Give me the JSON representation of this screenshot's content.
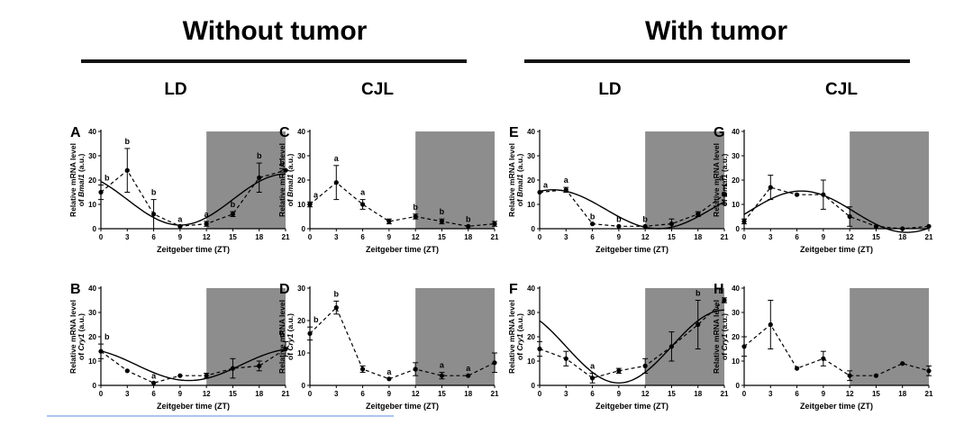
{
  "headers": {
    "left_group": "Without tumor",
    "right_group": "With tumor",
    "columns": [
      "LD",
      "CJL",
      "LD",
      "CJL"
    ]
  },
  "common_x_label": "Zeitgeber time (ZT)",
  "chart_data": [
    {
      "type": "line",
      "letter": "A",
      "gene": "Bmal1",
      "ylabel_line1": "Relative mRNA level",
      "ylabel_prefix": "of ",
      "ylabel_suffix": " (a.u.)",
      "x": [
        0,
        3,
        6,
        9,
        12,
        15,
        18,
        21
      ],
      "xlim": [
        0,
        21
      ],
      "ylim": [
        0,
        40
      ],
      "yticks": [
        0,
        10,
        20,
        30,
        40
      ],
      "dark_start": 12,
      "series": [
        {
          "values": [
            15,
            24,
            6,
            1,
            2,
            6,
            21,
            24
          ],
          "errors": [
            3,
            9,
            6,
            0,
            1,
            1,
            6,
            0
          ]
        }
      ],
      "labels": [
        "b",
        "b",
        "b",
        "a",
        "a",
        "b",
        "b",
        "b"
      ],
      "fit": {
        "mesor": 12,
        "amplitude": 10.5,
        "peak": 21
      }
    },
    {
      "type": "line",
      "letter": "C",
      "gene": "Bmal1",
      "ylabel_line1": "Relative mRNA level",
      "ylabel_prefix": "of ",
      "ylabel_suffix": " (a.u.)",
      "x": [
        0,
        3,
        6,
        9,
        12,
        15,
        18,
        21
      ],
      "xlim": [
        0,
        21
      ],
      "ylim": [
        0,
        40
      ],
      "yticks": [
        0,
        10,
        20,
        30,
        40
      ],
      "dark_start": 12,
      "series": [
        {
          "values": [
            10,
            19,
            10,
            3,
            5,
            3,
            1,
            2
          ],
          "errors": [
            1,
            7,
            2,
            1,
            1,
            1,
            0,
            1
          ]
        }
      ],
      "labels": [
        "a",
        "a",
        "a",
        "",
        "b",
        "b",
        "b",
        ""
      ],
      "fit": null
    },
    {
      "type": "line",
      "letter": "E",
      "gene": "Bmal1",
      "ylabel_line1": "Relative mRNA level",
      "ylabel_prefix": "of ",
      "ylabel_suffix": " (a.u.)",
      "x": [
        0,
        3,
        6,
        9,
        12,
        15,
        18,
        21
      ],
      "xlim": [
        0,
        21
      ],
      "ylim": [
        0,
        40
      ],
      "yticks": [
        0,
        10,
        20,
        30,
        40
      ],
      "dark_start": 12,
      "series": [
        {
          "values": [
            15,
            16,
            2,
            1,
            1,
            2,
            6,
            14
          ],
          "errors": [
            0,
            1,
            0,
            0,
            0,
            2,
            1,
            4
          ]
        }
      ],
      "labels": [
        "a",
        "a",
        "b",
        "b",
        "b",
        "",
        "",
        "a"
      ],
      "fit": {
        "mesor": 8,
        "amplitude": 8,
        "peak": 1.5
      }
    },
    {
      "type": "line",
      "letter": "G",
      "gene": "Bmal1",
      "ylabel_line1": "Relative mRNA level",
      "ylabel_prefix": "of ",
      "ylabel_suffix": " (a.u.)",
      "x": [
        0,
        3,
        6,
        9,
        12,
        15,
        18,
        21
      ],
      "xlim": [
        0,
        21
      ],
      "ylim": [
        0,
        40
      ],
      "yticks": [
        0,
        10,
        20,
        30,
        40
      ],
      "dark_start": 12,
      "series": [
        {
          "values": [
            3,
            17,
            14,
            14,
            5,
            1,
            0,
            1
          ],
          "errors": [
            1,
            5,
            0,
            6,
            4,
            0,
            0,
            0
          ]
        }
      ],
      "labels": [
        "",
        "",
        "",
        "",
        "",
        "",
        "",
        ""
      ],
      "fit": {
        "mesor": 7,
        "amplitude": 8.5,
        "peak": 6.5
      }
    },
    {
      "type": "line",
      "letter": "B",
      "gene": "Cry1",
      "ylabel_line1": "Relative mRNA level",
      "ylabel_prefix": "of ",
      "ylabel_suffix": " (a.u.)",
      "x": [
        0,
        3,
        6,
        9,
        12,
        15,
        18,
        21
      ],
      "xlim": [
        0,
        21
      ],
      "ylim": [
        0,
        40
      ],
      "yticks": [
        0,
        10,
        20,
        30,
        40
      ],
      "dark_start": 12,
      "series": [
        {
          "values": [
            14,
            6,
            1,
            4,
            4,
            7,
            8,
            15
          ],
          "errors": [
            3,
            0,
            0,
            0,
            1,
            4,
            2,
            3
          ]
        }
      ],
      "labels": [
        "b",
        "",
        "a",
        "",
        "",
        "",
        "",
        "b"
      ],
      "fit": {
        "mesor": 8.5,
        "amplitude": 6.5,
        "peak": 22
      }
    },
    {
      "type": "line",
      "letter": "D",
      "gene": "Cry1",
      "ylabel_line1": "Relative mRNA level",
      "ylabel_prefix": "of ",
      "ylabel_suffix": " (a.u.)",
      "x": [
        0,
        3,
        6,
        9,
        12,
        15,
        18,
        21
      ],
      "xlim": [
        0,
        21
      ],
      "ylim": [
        0,
        30
      ],
      "yticks": [
        0,
        10,
        20,
        30
      ],
      "dark_start": 12,
      "series": [
        {
          "values": [
            16,
            24,
            5,
            2,
            5,
            3,
            3,
            7
          ],
          "errors": [
            2,
            2,
            1,
            0,
            2,
            1,
            0,
            3
          ]
        }
      ],
      "labels": [
        "b",
        "b",
        "",
        "a",
        "",
        "a",
        "a",
        ""
      ],
      "fit": null
    },
    {
      "type": "line",
      "letter": "F",
      "gene": "Cry1",
      "ylabel_line1": "Relative mRNA level",
      "ylabel_prefix": "of ",
      "ylabel_suffix": " (a.u.)",
      "x": [
        0,
        3,
        6,
        9,
        12,
        15,
        18,
        21
      ],
      "xlim": [
        0,
        21
      ],
      "ylim": [
        0,
        40
      ],
      "yticks": [
        0,
        10,
        20,
        30,
        40
      ],
      "dark_start": 12,
      "series": [
        {
          "values": [
            15,
            11,
            3,
            6,
            8,
            16,
            25,
            35
          ],
          "errors": [
            3,
            3,
            2,
            1,
            3,
            6,
            10,
            1
          ]
        }
      ],
      "labels": [
        "",
        "",
        "a",
        "",
        "",
        "",
        "b",
        "b"
      ],
      "fit": {
        "mesor": 16,
        "amplitude": 15,
        "peak": 21
      }
    },
    {
      "type": "line",
      "letter": "H",
      "gene": "Cry1",
      "ylabel_line1": "Relative mRNA level",
      "ylabel_prefix": "of ",
      "ylabel_suffix": " (a.u.)",
      "x": [
        0,
        3,
        6,
        9,
        12,
        15,
        18,
        21
      ],
      "xlim": [
        0,
        21
      ],
      "ylim": [
        0,
        40
      ],
      "yticks": [
        0,
        10,
        20,
        30,
        40
      ],
      "dark_start": 12,
      "series": [
        {
          "values": [
            16,
            25,
            7,
            11,
            4,
            4,
            9,
            6
          ],
          "errors": [
            4,
            10,
            0,
            3,
            2,
            0,
            0,
            2
          ]
        }
      ],
      "labels": [
        "",
        "",
        "",
        "",
        "",
        "",
        "",
        ""
      ],
      "fit": null
    }
  ]
}
